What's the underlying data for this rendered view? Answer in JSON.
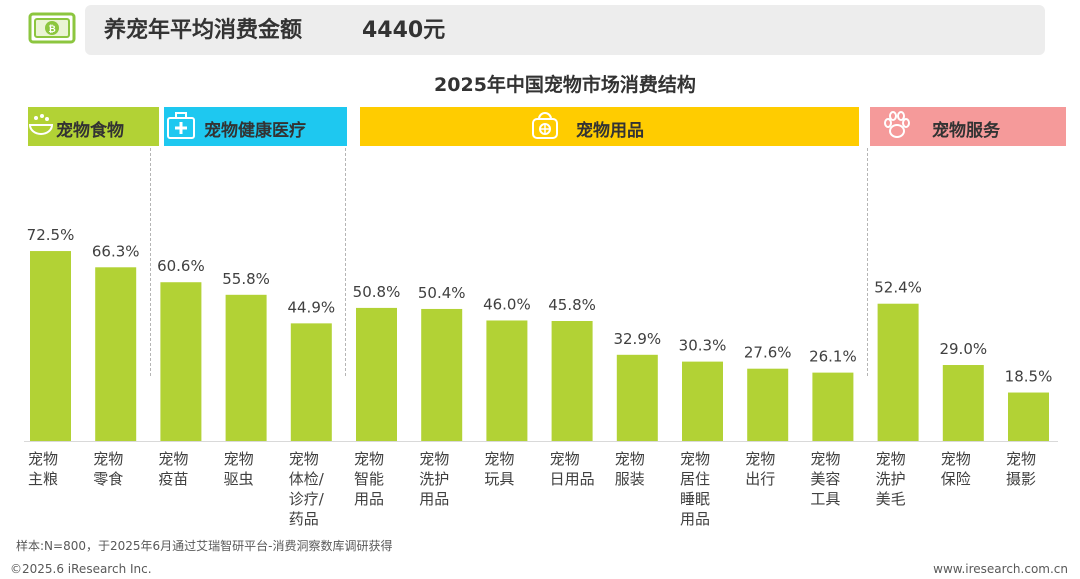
{
  "banner": {
    "icon": "money-bill-icon",
    "title": "养宠年平均消费金额",
    "value": "4440元"
  },
  "categories": [
    {
      "label": "宠物食物",
      "color": "#b2d235",
      "icon": "food-bowl-icon"
    },
    {
      "label": "宠物健康医疗",
      "color": "#1ec8f0",
      "icon": "medical-kit-icon"
    },
    {
      "label": "宠物用品",
      "color": "#ffcc00",
      "icon": "pet-carrier-icon"
    },
    {
      "label": "宠物服务",
      "color": "#f59a9a",
      "icon": "paw-icon"
    }
  ],
  "chart_data": {
    "type": "bar",
    "title": "2025年中国宠物市场消费结构",
    "bar_color": "#b2d235",
    "unit": "%",
    "categories": [
      [
        "宠物",
        "主粮"
      ],
      [
        "宠物",
        "零食"
      ],
      [
        "宠物",
        "疫苗"
      ],
      [
        "宠物",
        "驱虫"
      ],
      [
        "宠物",
        "体检/",
        "诊疗/",
        "药品"
      ],
      [
        "宠物",
        "智能",
        "用品"
      ],
      [
        "宠物",
        "洗护",
        "用品"
      ],
      [
        "宠物",
        "玩具"
      ],
      [
        "宠物",
        "日用品"
      ],
      [
        "宠物",
        "服装"
      ],
      [
        "宠物",
        "居住",
        "睡眠",
        "用品"
      ],
      [
        "宠物",
        "出行"
      ],
      [
        "宠物",
        "美容",
        "工具"
      ],
      [
        "宠物",
        "洗护",
        "美毛"
      ],
      [
        "宠物",
        "保险"
      ],
      [
        "宠物",
        "摄影"
      ]
    ],
    "values": [
      72.5,
      66.3,
      60.6,
      55.8,
      44.9,
      50.8,
      50.4,
      46.0,
      45.8,
      32.9,
      30.3,
      27.6,
      26.1,
      52.4,
      29.0,
      18.5
    ],
    "value_labels": [
      "72.5%",
      "66.3%",
      "60.6%",
      "55.8%",
      "44.9%",
      "50.8%",
      "50.4%",
      "46.0%",
      "45.8%",
      "32.9%",
      "30.3%",
      "27.6%",
      "26.1%",
      "52.4%",
      "29.0%",
      "18.5%"
    ],
    "groups": [
      {
        "category": "宠物食物",
        "bars": [
          0,
          1
        ]
      },
      {
        "category": "宠物健康医疗",
        "bars": [
          2,
          3,
          4
        ]
      },
      {
        "category": "宠物用品",
        "bars": [
          5,
          6,
          7,
          8,
          9,
          10,
          11,
          12
        ]
      },
      {
        "category": "宠物服务",
        "bars": [
          13,
          14,
          15
        ]
      }
    ]
  },
  "footer": {
    "note": "样本:N=800，于2025年6月通过艾瑞智研平台-消费洞察数库调研获得",
    "copyright": "©2025.6 iResearch Inc.",
    "website": "www.iresearch.com.cn"
  }
}
